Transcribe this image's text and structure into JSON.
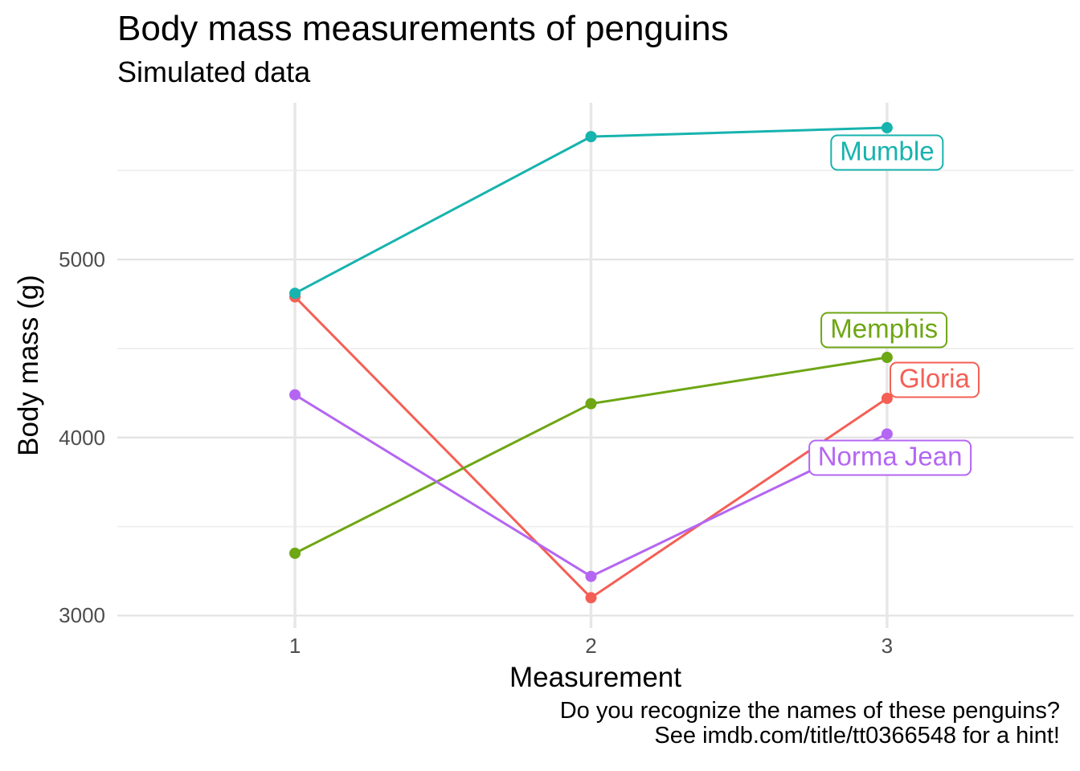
{
  "chart_data": {
    "type": "line",
    "title": "Body mass measurements of penguins",
    "subtitle": "Simulated data",
    "xlabel": "Measurement",
    "ylabel": "Body mass (g)",
    "caption_lines": [
      "Do you recognize the names of these penguins?",
      "See imdb.com/title/tt0366548 for a hint!"
    ],
    "x": [
      1,
      2,
      3
    ],
    "series": [
      {
        "name": "Gloria",
        "color": "#F45F55",
        "values": [
          4790,
          3100,
          4220
        ],
        "label_pos": {
          "x": 3.16,
          "y": 4325
        }
      },
      {
        "name": "Memphis",
        "color": "#6EA614",
        "values": [
          3350,
          4190,
          4450
        ],
        "label_pos": {
          "x": 2.99,
          "y": 4605
        }
      },
      {
        "name": "Mumble",
        "color": "#17B3AE",
        "values": [
          4810,
          5690,
          5740
        ],
        "label_pos": {
          "x": 3.0,
          "y": 5600
        }
      },
      {
        "name": "Norma Jean",
        "color": "#B466F2",
        "values": [
          4240,
          3220,
          4020
        ],
        "label_pos": {
          "x": 3.01,
          "y": 3885
        }
      }
    ],
    "xlim": [
      0.4,
      3.63
    ],
    "ylim": [
      2930,
      5880
    ],
    "xticks": [
      1,
      2,
      3
    ],
    "yticks": [
      3000,
      4000,
      5000
    ],
    "yticks_minor": [
      3500,
      4500,
      5500
    ],
    "grid": {
      "major_color": "#E3E3E3",
      "minor_color": "#F0F0F0",
      "vertical_color": "#E7E7E7"
    },
    "style": {
      "tick_text_color": "#4d4d4d",
      "background": "#ffffff",
      "line_width": 3,
      "point_radius": 7
    },
    "legend_position": "direct-labels-on-plot",
    "grid_on": true
  }
}
